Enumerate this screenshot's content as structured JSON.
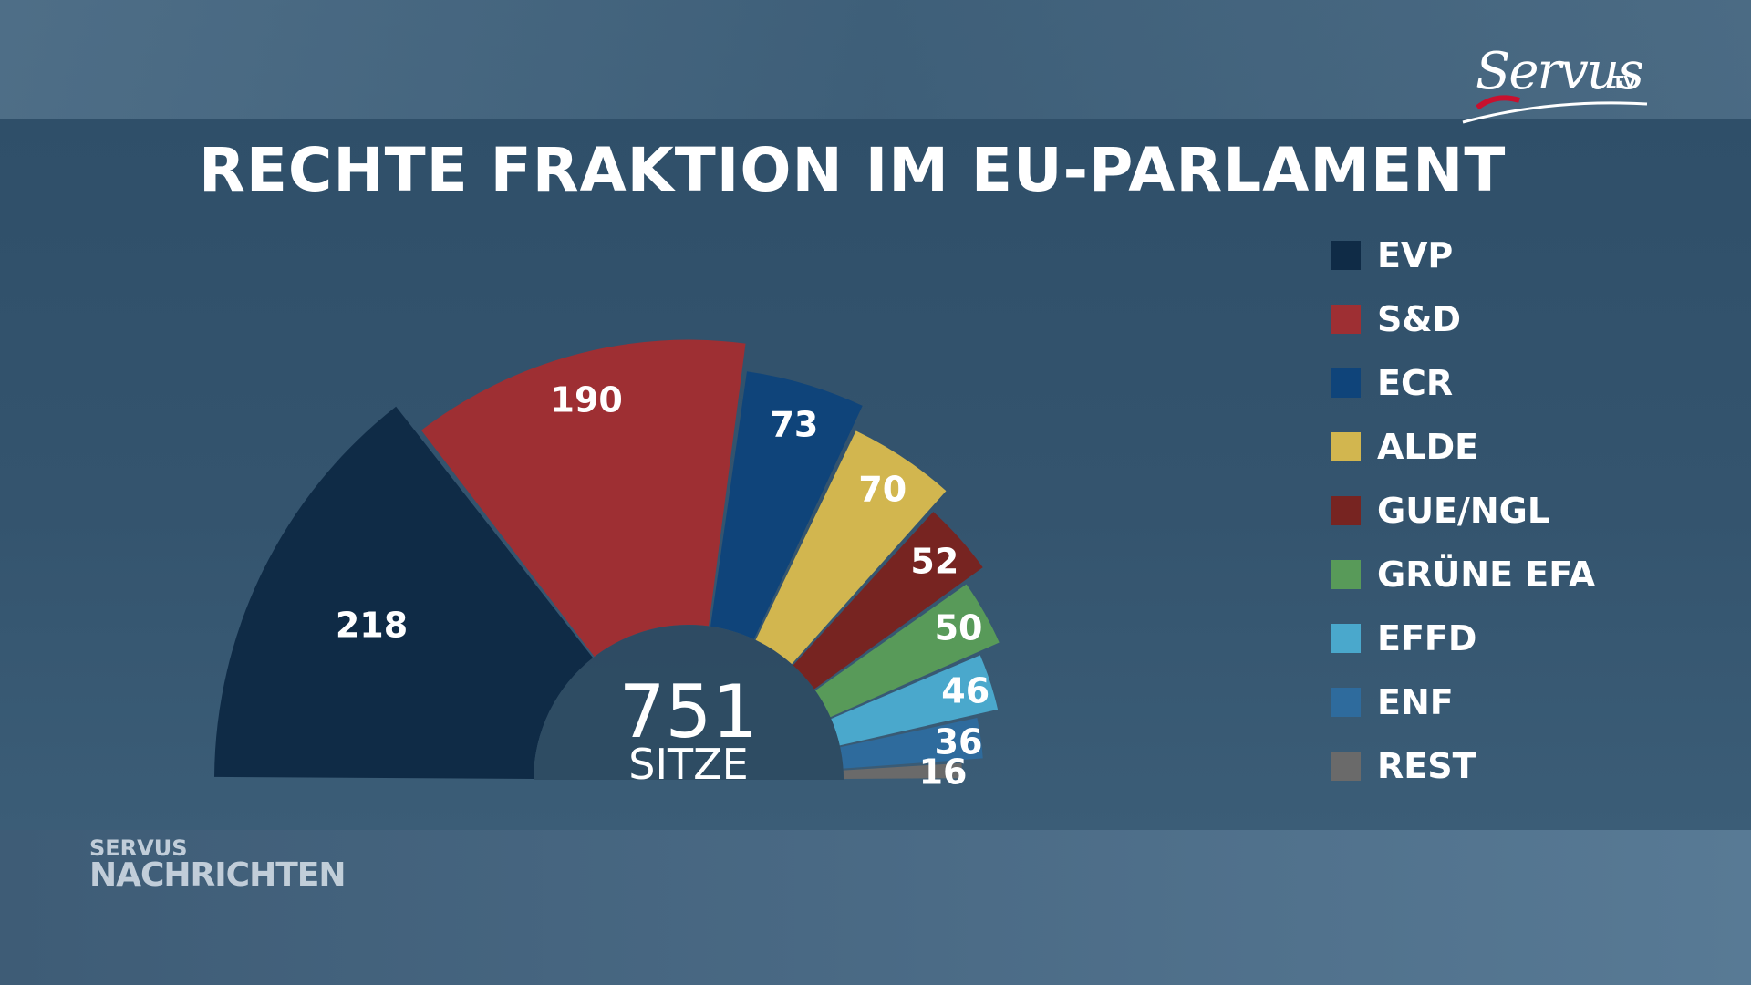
{
  "title": "RECHTE FRAKTION IM EU-PARLAMENT",
  "logo": {
    "script": "Servus",
    "suffix": "TV"
  },
  "brand": {
    "line1": "SERVUS",
    "line2": "NACHRICHTEN"
  },
  "center": {
    "number": "751",
    "label": "SITZE"
  },
  "chart_data": {
    "type": "pie",
    "shape": "half-donut",
    "title": "RECHTE FRAKTION IM EU-PARLAMENT",
    "total": 751,
    "legend_position": "right",
    "categories": [
      "EVP",
      "S&D",
      "ECR",
      "ALDE",
      "GUE/NGL",
      "GRÜNE EFA",
      "EFFD",
      "ENF",
      "REST"
    ],
    "values": [
      218,
      190,
      73,
      70,
      52,
      50,
      46,
      36,
      16
    ],
    "colors": [
      "#0f2b46",
      "#9e2f33",
      "#0f447a",
      "#d2b64f",
      "#772421",
      "#589a59",
      "#4aa8cc",
      "#2e6b9d",
      "#6a6a6a"
    ]
  }
}
